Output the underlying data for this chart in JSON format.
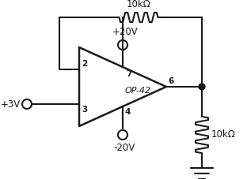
{
  "bg_color": "#ffffff",
  "line_color": "#1a1a1a",
  "text_color": "#1a1a1a",
  "op_amp_label": "OP-42",
  "resistor_top_label": "10kΩ",
  "resistor_bottom_label": "10kΩ",
  "v_plus_label": "+20V",
  "v_minus_label": "-20V",
  "v3_label": "+3V",
  "pin2_label": "2",
  "pin3_label": "3",
  "pin4_label": "4",
  "pin6_label": "6",
  "pin7_label": "7",
  "figsize": [
    3.12,
    2.27
  ],
  "dpi": 100
}
